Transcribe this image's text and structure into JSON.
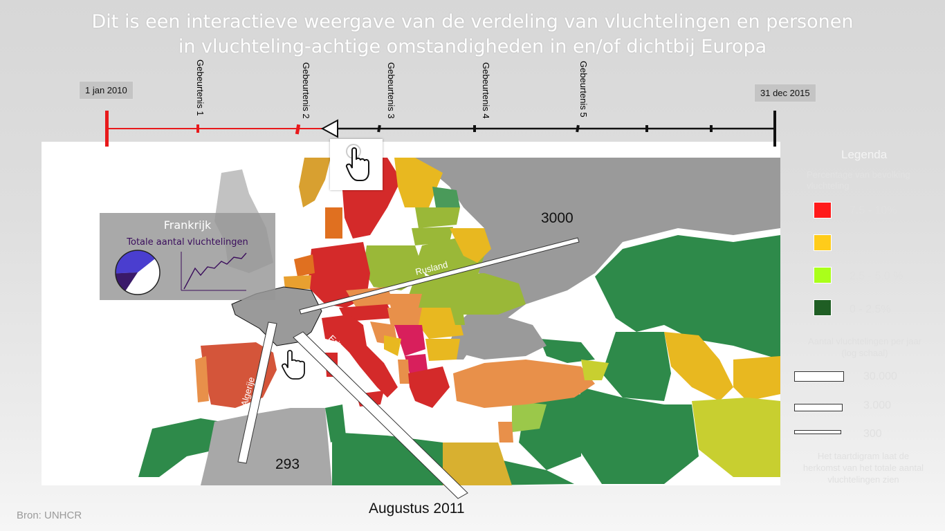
{
  "title": {
    "line1": "Dit is een interactieve weergave van de verdeling van vluchtelingen en personen",
    "line2": "in vluchteling-achtige omstandigheden in en/of dichtbij Europa"
  },
  "timeline": {
    "start_label": "1 jan 2010",
    "end_label": "31 dec 2015",
    "events": [
      "Gebeurtenis 1",
      "Gebeurtenis 2",
      "Gebeurtenis 3",
      "Gebeurtenis 4",
      "Gebeurtenis 5"
    ],
    "active_color": "#e8191b",
    "inactive_color": "#111111"
  },
  "popup": {
    "country": "Frankrijk",
    "subtitle": "Totale aantal vluchtelingen",
    "pie_shares": [
      0.45,
      0.15,
      0.4
    ],
    "pie_colors": [
      "#ffffff",
      "#3a1a6a",
      "#4a3ecf"
    ]
  },
  "flows": [
    {
      "label": "Rusland",
      "value_label": "3000"
    },
    {
      "label": "Eritrea",
      "value_label": ""
    },
    {
      "label": "Algerije",
      "value_label": "293"
    }
  ],
  "current_date": "Augustus 2011",
  "legend": {
    "title": "Legenda",
    "color_title": "Percentage van bevolking vluchteling",
    "color_items": [
      {
        "label": "7.5 - 10%",
        "color": "#ff1a1a"
      },
      {
        "label": "5.0 - 7.5%",
        "color": "#ffcc1a"
      },
      {
        "label": "2.5 - 5.0 %",
        "color": "#aaff1a"
      },
      {
        "label": "0 - 2.5%",
        "color": "#1f5e24"
      }
    ],
    "size_title": "Aantal vluchtelingen per jaar (log schaal)",
    "size_items": [
      {
        "label": "30.000"
      },
      {
        "label": "3.000"
      },
      {
        "label": "300"
      }
    ],
    "note": "Het taartdigram laat de herkomst van het totale aantal vluchtelingen zien"
  },
  "source": "Bron: UNHCR",
  "icons": [
    "pointer-hand-icon"
  ]
}
